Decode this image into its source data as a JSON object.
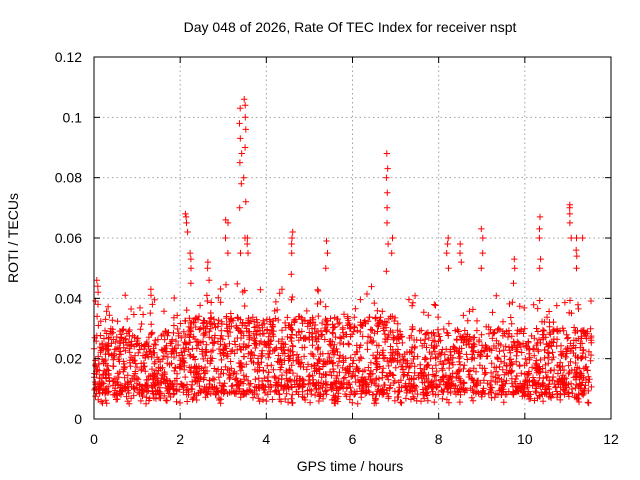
{
  "chart_data": {
    "type": "scatter",
    "title": "Day 048 of 2026, Rate Of TEC Index for receiver nspt",
    "xlabel": "GPS time / hours",
    "ylabel": "ROTI / TECUs",
    "xlim": [
      0,
      12
    ],
    "ylim": [
      0,
      0.12
    ],
    "xticks": [
      "0",
      "2",
      "4",
      "6",
      "8",
      "10",
      "12"
    ],
    "yticks": [
      "0",
      "0.02",
      "0.04",
      "0.06",
      "0.08",
      "0.1",
      "0.12"
    ],
    "xtick_values": [
      0,
      2,
      4,
      6,
      8,
      10,
      12
    ],
    "ytick_values": [
      0,
      0.02,
      0.04,
      0.06,
      0.08,
      0.1,
      0.12
    ],
    "grid": true,
    "marker": "plus",
    "color": "#ff0000",
    "data_x_range": [
      0,
      11.55
    ],
    "background_band": {
      "description": "dense cloud of ROTI values across all hours",
      "y_range": [
        0.005,
        0.035
      ],
      "typical_low": 0.008,
      "typical_high": 0.03
    },
    "spikes": [
      {
        "x": 0.08,
        "y": [
          0.031,
          0.034,
          0.038,
          0.042,
          0.044,
          0.046
        ]
      },
      {
        "x": 1.35,
        "y": [
          0.038,
          0.041,
          0.043
        ]
      },
      {
        "x": 2.15,
        "y": [
          0.062,
          0.065,
          0.067,
          0.068
        ]
      },
      {
        "x": 2.25,
        "y": [
          0.045,
          0.05,
          0.053,
          0.055
        ]
      },
      {
        "x": 2.65,
        "y": [
          0.046,
          0.05,
          0.052
        ]
      },
      {
        "x": 3.08,
        "y": [
          0.055,
          0.06,
          0.065,
          0.066
        ]
      },
      {
        "x": 3.4,
        "y": [
          0.055,
          0.07,
          0.078,
          0.085,
          0.088,
          0.093,
          0.098,
          0.103
        ]
      },
      {
        "x": 3.5,
        "y": [
          0.06,
          0.072,
          0.08,
          0.09,
          0.096,
          0.1,
          0.104,
          0.106
        ]
      },
      {
        "x": 3.55,
        "y": [
          0.055,
          0.058,
          0.06
        ]
      },
      {
        "x": 4.6,
        "y": [
          0.048,
          0.055,
          0.058,
          0.06,
          0.062
        ]
      },
      {
        "x": 5.4,
        "y": [
          0.05,
          0.055,
          0.059
        ]
      },
      {
        "x": 6.8,
        "y": [
          0.049,
          0.058,
          0.065,
          0.07,
          0.075,
          0.08,
          0.083,
          0.088
        ]
      },
      {
        "x": 6.9,
        "y": [
          0.055,
          0.06
        ]
      },
      {
        "x": 8.2,
        "y": [
          0.05,
          0.055,
          0.058,
          0.06
        ]
      },
      {
        "x": 8.5,
        "y": [
          0.052,
          0.055,
          0.058
        ]
      },
      {
        "x": 9.0,
        "y": [
          0.05,
          0.055,
          0.06,
          0.063
        ]
      },
      {
        "x": 9.75,
        "y": [
          0.045,
          0.05,
          0.053
        ]
      },
      {
        "x": 10.35,
        "y": [
          0.05,
          0.053,
          0.06,
          0.063,
          0.067
        ]
      },
      {
        "x": 11.05,
        "y": [
          0.06,
          0.065,
          0.068,
          0.07,
          0.071
        ]
      },
      {
        "x": 11.2,
        "y": [
          0.05,
          0.054,
          0.056,
          0.06
        ]
      },
      {
        "x": 11.35,
        "y": [
          0.06
        ]
      }
    ]
  }
}
